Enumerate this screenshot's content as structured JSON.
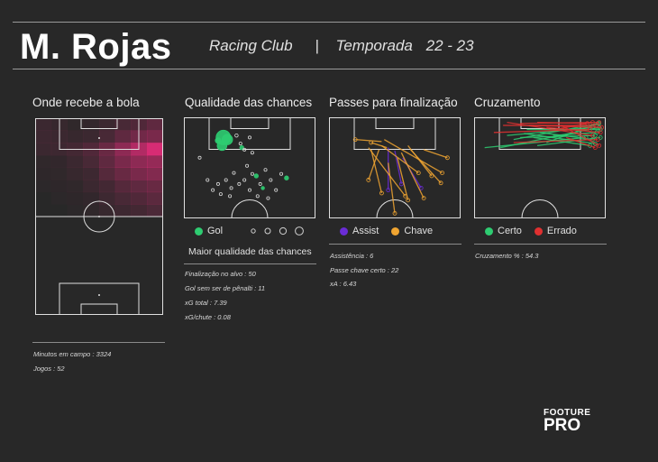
{
  "header": {
    "player": "M. Rojas",
    "club": "Racing Club",
    "separator": "|",
    "season_label": "Temporada",
    "season": "22 - 23"
  },
  "panels": {
    "touch": {
      "title": "Onde recebe a bola"
    },
    "shots": {
      "title": "Qualidade das chances",
      "legend_goal": "Gol",
      "caption": "Maior qualidade das chances"
    },
    "passes": {
      "title": "Passes para finalização",
      "legend_assist": "Assist",
      "legend_key": "Chave"
    },
    "cross": {
      "title": "Cruzamento",
      "legend_ok": "Certo",
      "legend_fail": "Errado"
    }
  },
  "stats": {
    "general": [
      "Minutos em campo : 3324",
      "Jogos : 52"
    ],
    "shots": [
      "Finalização no alvo : 50",
      "Gol sem ser de pênalti : 11",
      "xG total : 7.39",
      "xG/chute : 0.08"
    ],
    "passes": [
      "Assistência : 6",
      "Passe chave certo : 22",
      "xA : 6.43"
    ],
    "cross": [
      "Cruzamento % : 54.3"
    ]
  },
  "colors": {
    "goal": "#2ecc71",
    "assist": "#6a2cd6",
    "key_pass": "#f0a531",
    "cross_ok": "#2ecc71",
    "cross_fail": "#e03030",
    "heat": "#ff2d86"
  },
  "logo": {
    "line1": "FOOTURE",
    "line2": "PRO"
  },
  "chart_data": [
    {
      "type": "heatmap",
      "title": "Onde recebe a bola",
      "orientation": "vertical pitch, attacking upward",
      "rows_top_to_bottom": [
        [
          0.1,
          0.08,
          0.05,
          0.06,
          0.1,
          0.18,
          0.22,
          0.3
        ],
        [
          0.12,
          0.1,
          0.08,
          0.1,
          0.18,
          0.3,
          0.4,
          0.45
        ],
        [
          0.1,
          0.12,
          0.15,
          0.22,
          0.35,
          0.55,
          0.75,
          0.95
        ],
        [
          0.05,
          0.06,
          0.1,
          0.18,
          0.3,
          0.45,
          0.55,
          0.6
        ],
        [
          0.03,
          0.05,
          0.08,
          0.12,
          0.25,
          0.35,
          0.45,
          0.5
        ],
        [
          0.02,
          0.03,
          0.05,
          0.1,
          0.15,
          0.25,
          0.3,
          0.35
        ],
        [
          0.0,
          0.02,
          0.03,
          0.06,
          0.12,
          0.18,
          0.22,
          0.28
        ],
        [
          0.0,
          0.0,
          0.02,
          0.05,
          0.08,
          0.12,
          0.15,
          0.2
        ]
      ]
    },
    {
      "type": "scatter",
      "title": "Qualidade das chances",
      "series": [
        {
          "name": "Gol",
          "points": [
            [
              0.3,
              0.2,
              0.18
            ],
            [
              0.33,
              0.22,
              0.13
            ],
            [
              0.29,
              0.28,
              0.12
            ],
            [
              0.26,
              0.23,
              0.07
            ],
            [
              0.55,
              0.58,
              0.05
            ],
            [
              0.78,
              0.6,
              0.05
            ],
            [
              0.6,
              0.7,
              0.04
            ],
            [
              0.44,
              0.3,
              0.05
            ]
          ]
        },
        {
          "name": "",
          "points": [
            [
              0.4,
              0.18,
              0.04
            ],
            [
              0.43,
              0.26,
              0.03
            ],
            [
              0.46,
              0.32,
              0.02
            ],
            [
              0.5,
              0.2,
              0.03
            ],
            [
              0.52,
              0.35,
              0.02
            ],
            [
              0.48,
              0.48,
              0.02
            ],
            [
              0.38,
              0.55,
              0.02
            ],
            [
              0.32,
              0.62,
              0.03
            ],
            [
              0.26,
              0.66,
              0.02
            ],
            [
              0.42,
              0.66,
              0.02
            ],
            [
              0.5,
              0.72,
              0.02
            ],
            [
              0.58,
              0.66,
              0.02
            ],
            [
              0.66,
              0.62,
              0.02
            ],
            [
              0.7,
              0.72,
              0.02
            ],
            [
              0.22,
              0.72,
              0.02
            ],
            [
              0.18,
              0.62,
              0.02
            ],
            [
              0.12,
              0.4,
              0.02
            ],
            [
              0.35,
              0.78,
              0.02
            ],
            [
              0.56,
              0.78,
              0.02
            ],
            [
              0.64,
              0.8,
              0.02
            ],
            [
              0.28,
              0.76,
              0.03
            ],
            [
              0.46,
              0.62,
              0.02
            ],
            [
              0.52,
              0.56,
              0.02
            ],
            [
              0.36,
              0.7,
              0.02
            ],
            [
              0.74,
              0.56,
              0.02
            ],
            [
              0.62,
              0.52,
              0.02
            ]
          ]
        }
      ]
    },
    {
      "type": "line",
      "title": "Passes para finalização",
      "series": [
        {
          "name": "Assist",
          "segments": [
            [
              0.45,
              0.72,
              0.45,
              0.3
            ],
            [
              0.55,
              0.66,
              0.5,
              0.33
            ],
            [
              0.7,
              0.7,
              0.56,
              0.4
            ]
          ]
        },
        {
          "name": "Chave",
          "segments": [
            [
              0.5,
              0.95,
              0.45,
              0.45
            ],
            [
              0.6,
              0.82,
              0.52,
              0.4
            ],
            [
              0.72,
              0.8,
              0.55,
              0.35
            ],
            [
              0.85,
              0.65,
              0.62,
              0.32
            ],
            [
              0.9,
              0.4,
              0.72,
              0.32
            ],
            [
              0.4,
              0.75,
              0.32,
              0.32
            ],
            [
              0.58,
              0.78,
              0.3,
              0.3
            ],
            [
              0.68,
              0.55,
              0.4,
              0.28
            ],
            [
              0.86,
              0.55,
              0.42,
              0.22
            ],
            [
              0.3,
              0.62,
              0.38,
              0.32
            ],
            [
              0.2,
              0.22,
              0.4,
              0.24
            ],
            [
              0.32,
              0.25,
              0.44,
              0.3
            ],
            [
              0.78,
              0.58,
              0.6,
              0.28
            ]
          ]
        }
      ]
    },
    {
      "type": "line",
      "title": "Cruzamento",
      "series": [
        {
          "name": "Certo",
          "segments": [
            [
              0.95,
              0.06,
              0.3,
              0.22
            ],
            [
              0.95,
              0.1,
              0.2,
              0.3
            ],
            [
              0.92,
              0.18,
              0.35,
              0.2
            ],
            [
              0.9,
              0.22,
              0.5,
              0.15
            ],
            [
              0.96,
              0.12,
              0.4,
              0.12
            ],
            [
              0.88,
              0.28,
              0.45,
              0.2
            ],
            [
              0.94,
              0.06,
              0.55,
              0.25
            ],
            [
              0.85,
              0.2,
              0.08,
              0.3
            ],
            [
              0.93,
              0.15,
              0.6,
              0.18
            ],
            [
              0.9,
              0.1,
              0.25,
              0.18
            ],
            [
              0.96,
              0.2,
              0.48,
              0.28
            ],
            [
              0.92,
              0.26,
              0.38,
              0.16
            ]
          ]
        },
        {
          "name": "Errado",
          "segments": [
            [
              0.95,
              0.05,
              0.35,
              0.06
            ],
            [
              0.93,
              0.08,
              0.22,
              0.08
            ],
            [
              0.96,
              0.15,
              0.55,
              0.1
            ],
            [
              0.9,
              0.05,
              0.62,
              0.12
            ],
            [
              0.94,
              0.22,
              0.3,
              0.25
            ],
            [
              0.88,
              0.12,
              0.15,
              0.15
            ],
            [
              0.97,
              0.1,
              0.42,
              0.08
            ],
            [
              0.92,
              0.3,
              0.7,
              0.2
            ],
            [
              0.9,
              0.18,
              0.25,
              0.05
            ],
            [
              0.95,
              0.28,
              0.66,
              0.08
            ],
            [
              0.86,
              0.06,
              0.48,
              0.05
            ]
          ]
        }
      ]
    }
  ]
}
